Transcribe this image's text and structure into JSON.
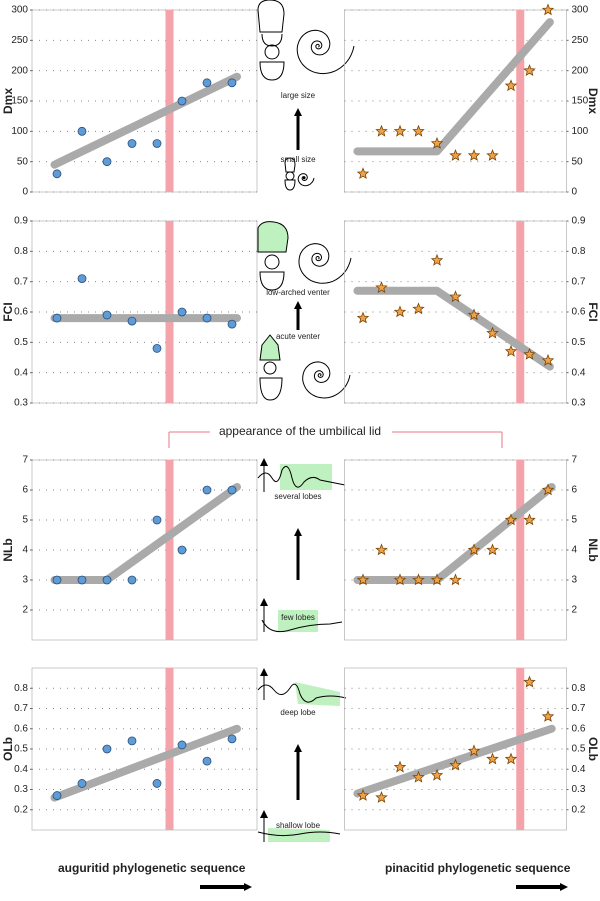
{
  "chart_data": [
    {
      "type": "scatter",
      "ylabel": "Dmx",
      "side": "left",
      "marker": "circle",
      "color": "#5f9bd6",
      "x": [
        1,
        2,
        3,
        4,
        5,
        6,
        7,
        8
      ],
      "values": [
        30,
        100,
        50,
        80,
        80,
        150,
        180,
        180
      ],
      "trend": {
        "x": [
          0.9,
          8.2
        ],
        "values": [
          45,
          190
        ],
        "color": "#aaaaaa"
      },
      "highlight_x": 5.5,
      "highlight_color": "#f5a3aa",
      "xlim": [
        0,
        9
      ],
      "ylim": [
        0,
        300
      ],
      "yticks": [
        0,
        50,
        100,
        150,
        200,
        250,
        300
      ],
      "grid": true
    },
    {
      "type": "scatter",
      "ylabel": "Dmx",
      "side": "right",
      "marker": "star",
      "color": "#f0a24a",
      "x": [
        1,
        2,
        3,
        4,
        5,
        6,
        7,
        8,
        9,
        10,
        11
      ],
      "values": [
        30,
        100,
        100,
        100,
        80,
        60,
        60,
        60,
        175,
        200,
        300
      ],
      "trend": {
        "x": [
          0.7,
          5,
          11.1
        ],
        "values": [
          67,
          67,
          280
        ],
        "color": "#aaaaaa"
      },
      "highlight_x": 9.5,
      "highlight_color": "#f5a3aa",
      "xlim": [
        0,
        12
      ],
      "ylim": [
        0,
        300
      ],
      "yticks": [
        0,
        50,
        100,
        150,
        200,
        250,
        300
      ],
      "grid": true
    },
    {
      "type": "scatter",
      "ylabel": "FCI",
      "side": "left",
      "marker": "circle",
      "color": "#5f9bd6",
      "x": [
        1,
        2,
        3,
        4,
        5,
        6,
        7,
        8
      ],
      "values": [
        0.58,
        0.71,
        0.59,
        0.57,
        0.48,
        0.6,
        0.58,
        0.56
      ],
      "trend": {
        "x": [
          0.9,
          8.2
        ],
        "values": [
          0.58,
          0.58
        ],
        "color": "#aaaaaa"
      },
      "highlight_x": 5.5,
      "highlight_color": "#f5a3aa",
      "xlim": [
        0,
        9
      ],
      "ylim": [
        0.3,
        0.9
      ],
      "yticks": [
        0.3,
        0.4,
        0.5,
        0.6,
        0.7,
        0.8,
        0.9
      ],
      "grid": true
    },
    {
      "type": "scatter",
      "ylabel": "FCI",
      "side": "right",
      "marker": "star",
      "color": "#f0a24a",
      "x": [
        1,
        2,
        3,
        4,
        5,
        6,
        7,
        8,
        9,
        10,
        11
      ],
      "values": [
        0.58,
        0.68,
        0.6,
        0.61,
        0.77,
        0.65,
        0.59,
        0.53,
        0.47,
        0.46,
        0.44
      ],
      "trend": {
        "x": [
          0.7,
          5,
          11.1
        ],
        "values": [
          0.67,
          0.67,
          0.42
        ],
        "color": "#aaaaaa"
      },
      "highlight_x": 9.5,
      "highlight_color": "#f5a3aa",
      "xlim": [
        0,
        12
      ],
      "ylim": [
        0.3,
        0.9
      ],
      "yticks": [
        0.3,
        0.4,
        0.5,
        0.6,
        0.7,
        0.8,
        0.9
      ],
      "grid": true
    },
    {
      "type": "scatter",
      "ylabel": "NLb",
      "side": "left",
      "marker": "circle",
      "color": "#5f9bd6",
      "x": [
        1,
        2,
        3,
        4,
        5,
        6,
        7,
        8
      ],
      "values": [
        3,
        3,
        3,
        3,
        5,
        4,
        6,
        6
      ],
      "trend": {
        "x": [
          0.9,
          3,
          8.2
        ],
        "values": [
          3,
          3,
          6.1
        ],
        "color": "#aaaaaa"
      },
      "highlight_x": 5.5,
      "highlight_color": "#f5a3aa",
      "xlim": [
        0,
        9
      ],
      "ylim": [
        1,
        7
      ],
      "yticks": [
        2,
        3,
        4,
        5,
        6,
        7
      ],
      "grid": true
    },
    {
      "type": "scatter",
      "ylabel": "NLb",
      "side": "right",
      "marker": "star",
      "color": "#f0a24a",
      "x": [
        1,
        2,
        3,
        4,
        5,
        6,
        7,
        8,
        9,
        10,
        11
      ],
      "values": [
        3,
        4,
        3,
        3,
        3,
        3,
        4,
        4,
        5,
        5,
        6
      ],
      "trend": {
        "x": [
          0.7,
          5,
          11.2
        ],
        "values": [
          3,
          3,
          6.1
        ],
        "color": "#aaaaaa"
      },
      "highlight_x": 9.5,
      "highlight_color": "#f5a3aa",
      "xlim": [
        0,
        12
      ],
      "ylim": [
        1,
        7
      ],
      "yticks": [
        2,
        3,
        4,
        5,
        6,
        7
      ],
      "grid": true
    },
    {
      "type": "scatter",
      "ylabel": "OLb",
      "side": "left",
      "marker": "circle",
      "color": "#5f9bd6",
      "xlabel": "auguritid phylogenetic sequence",
      "x": [
        1,
        2,
        3,
        4,
        5,
        6,
        7,
        8
      ],
      "values": [
        0.27,
        0.33,
        0.5,
        0.54,
        0.33,
        0.52,
        0.44,
        0.55
      ],
      "trend": {
        "x": [
          0.9,
          8.2
        ],
        "values": [
          0.26,
          0.6
        ],
        "color": "#aaaaaa"
      },
      "highlight_x": 5.5,
      "highlight_color": "#f5a3aa",
      "xlim": [
        0,
        9
      ],
      "ylim": [
        0.1,
        0.9
      ],
      "yticks": [
        0.2,
        0.3,
        0.4,
        0.5,
        0.6,
        0.7,
        0.8
      ],
      "grid": true
    },
    {
      "type": "scatter",
      "ylabel": "OLb",
      "side": "right",
      "marker": "star",
      "color": "#f0a24a",
      "xlabel": "pinacitid phylogenetic sequence",
      "x": [
        1,
        2,
        3,
        4,
        5,
        6,
        7,
        8,
        9,
        10,
        11
      ],
      "values": [
        0.27,
        0.26,
        0.41,
        0.36,
        0.37,
        0.42,
        0.49,
        0.45,
        0.45,
        0.83,
        0.66
      ],
      "trend": {
        "x": [
          0.7,
          11.2
        ],
        "values": [
          0.28,
          0.6
        ],
        "color": "#aaaaaa"
      },
      "highlight_x": 9.5,
      "highlight_color": "#f5a3aa",
      "xlim": [
        0,
        12
      ],
      "ylim": [
        0.1,
        0.9
      ],
      "yticks": [
        0.2,
        0.3,
        0.4,
        0.5,
        0.6,
        0.7,
        0.8
      ],
      "grid": true
    }
  ],
  "annotation": "appearance of the umbilical lid",
  "illustrations": [
    "large size",
    "small size",
    "low-arched venter",
    "acute venter",
    "several lobes",
    "few lobes",
    "deep lobe",
    "shallow lobe"
  ]
}
